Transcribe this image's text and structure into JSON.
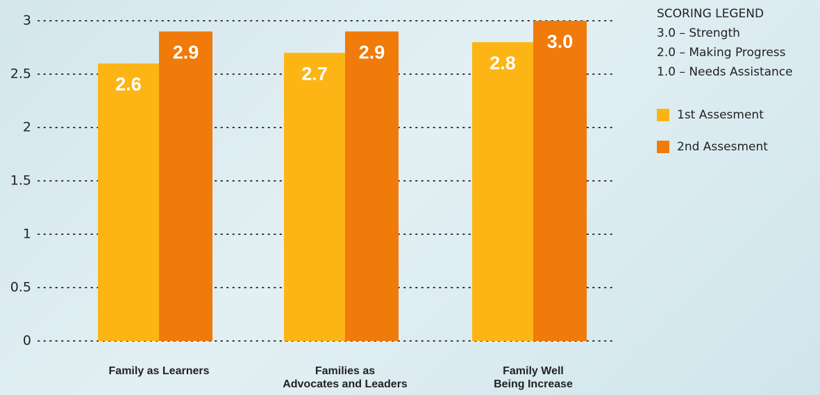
{
  "chart_data": {
    "type": "bar",
    "categories": [
      "Family as Learners",
      "Families as\nAdvocates and Leaders",
      "Family Well\nBeing Increase"
    ],
    "series": [
      {
        "name": "1st Assesment",
        "color": "#fdb515",
        "values": [
          2.6,
          2.7,
          2.8
        ],
        "value_labels": [
          "2.6",
          "2.7",
          "2.8"
        ]
      },
      {
        "name": "2nd Assesment",
        "color": "#f07a0a",
        "values": [
          2.9,
          2.9,
          3
        ],
        "value_labels": [
          "2.9",
          "2.9",
          "3.0"
        ]
      }
    ],
    "ylim": [
      0,
      3
    ],
    "yticks": [
      0,
      0.5,
      1,
      1.5,
      2,
      2.5,
      3
    ],
    "grid": true,
    "legend": "top-right",
    "scoring_legend": {
      "title": "SCORING LEGEND",
      "items": [
        "3.0 – Strength",
        "2.0 – Making Progress",
        "1.0 – Needs Assistance"
      ]
    }
  }
}
